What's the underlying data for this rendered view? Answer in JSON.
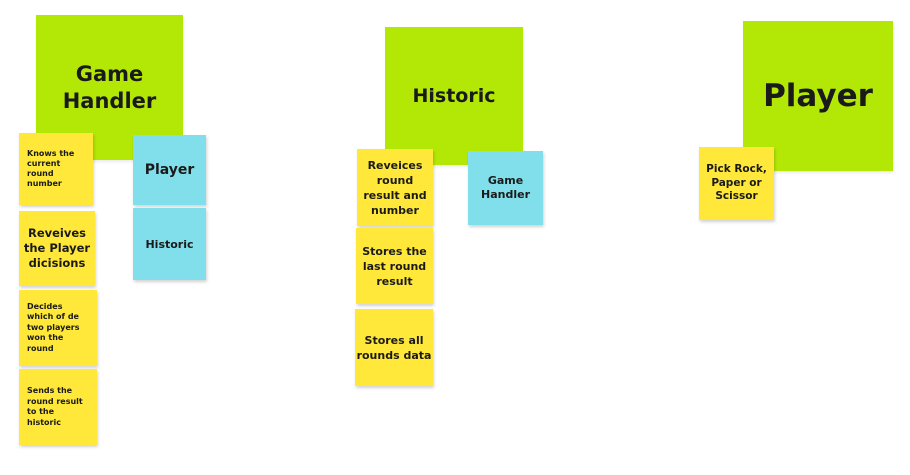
{
  "cards": {
    "game_handler": {
      "title": "Game Handler",
      "responsibilities": [
        "Knows the current round number",
        "Reveives the Player dicisions",
        "Decides which of de two players won the round",
        "Sends the round result to the historic"
      ],
      "collaborators": [
        "Player",
        "Historic"
      ]
    },
    "historic": {
      "title": "Historic",
      "responsibilities": [
        "Reveices round result and number",
        "Stores the last round result",
        "Stores all rounds data"
      ],
      "collaborators": [
        "Game Handler"
      ]
    },
    "player": {
      "title": "Player",
      "responsibilities": [
        "Pick Rock, Paper or Scissor"
      ],
      "collaborators": []
    }
  },
  "colors": {
    "class_note": "#b3e806",
    "responsibility_note": "#ffe83a",
    "collaborator_note": "#80dfeb"
  }
}
